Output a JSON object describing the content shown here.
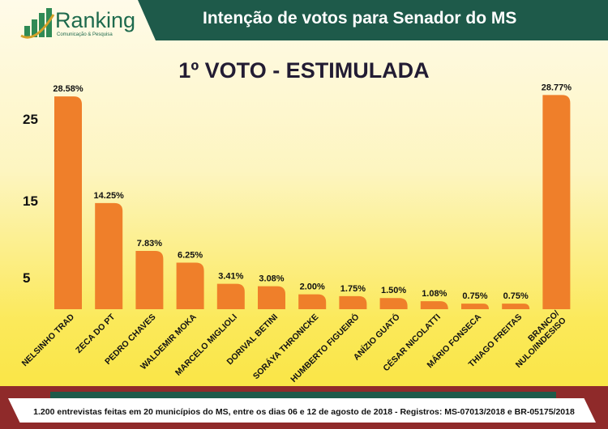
{
  "header": {
    "title": "Intenção de votos para Senador do MS",
    "logo_name": "Ranking",
    "logo_sub": "Comunicação & Pesquisa",
    "brand_color": "#1e5a4a"
  },
  "chart_data": {
    "type": "bar",
    "title": "1º VOTO - ESTIMULADA",
    "categories": [
      "NELSINHO TRAD",
      "ZECA DO PT",
      "PEDRO CHAVES",
      "WALDEMIR MOKA",
      "MARCELO MIGLIOLI",
      "DORIVAL BETINI",
      "SORÁYA THRONICKE",
      "HUMBERTO FIGUEIRÓ",
      "ANÍZIO GUATÓ",
      "CÉSAR NICOLATTI",
      "MÁRIO FONSECA",
      "THIAGO FREITAS",
      "BRANCO/ NULO/INDESISO"
    ],
    "values": [
      28.58,
      14.25,
      7.83,
      6.25,
      3.41,
      3.08,
      2.0,
      1.75,
      1.5,
      1.08,
      0.75,
      0.75,
      28.77
    ],
    "data_labels": [
      "28.58%",
      "14.25%",
      "7.83%",
      "6.25%",
      "3.41%",
      "3.08%",
      "2.00%",
      "1.75%",
      "1.50%",
      "1.08%",
      "0.75%",
      "0.75%",
      "28.77%"
    ],
    "yticks": [
      "5",
      "15",
      "25"
    ],
    "ylim": [
      0,
      30
    ],
    "bar_color": "#ef7f2a",
    "grid": false
  },
  "footer": {
    "text": "1.200 entrevistas feitas em 20 municípios do MS, entre os dias 06 e 12 de agosto de 2018 - Registros: MS-07013/2018 e BR-05175/2018"
  }
}
